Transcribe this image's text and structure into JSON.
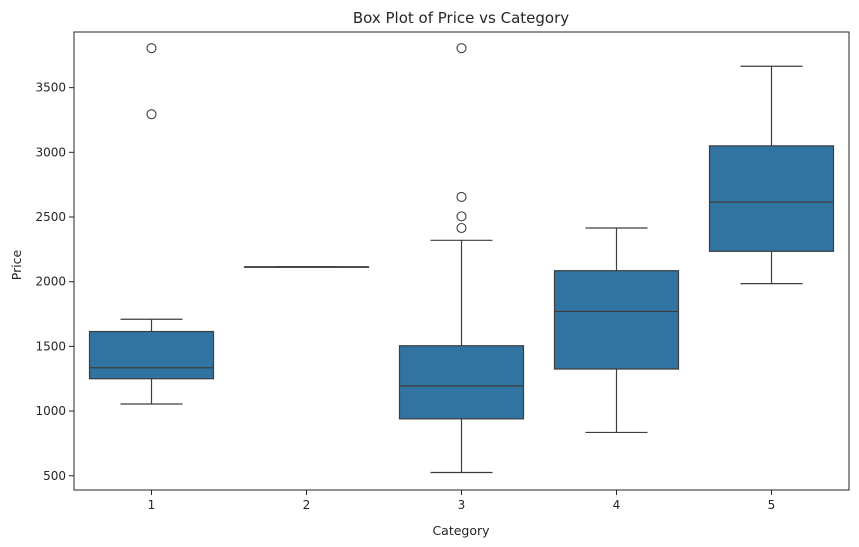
{
  "chart_data": {
    "type": "box",
    "title": "Box Plot of Price vs Category",
    "xlabel": "Category",
    "ylabel": "Price",
    "ylim": [
      390,
      3930
    ],
    "yticks": [
      500,
      1000,
      1500,
      2000,
      2500,
      3000,
      3500
    ],
    "categories": [
      "1",
      "2",
      "3",
      "4",
      "5"
    ],
    "box_color": "#3274a1",
    "line_color": "#3d3d3d",
    "boxes": [
      {
        "category": "1",
        "whisker_low": 1055,
        "q1": 1250,
        "median": 1335,
        "q3": 1615,
        "whisker_high": 1710,
        "outliers": [
          3295,
          3805
        ]
      },
      {
        "category": "2",
        "whisker_low": 2115,
        "q1": 2115,
        "median": 2115,
        "q3": 2115,
        "whisker_high": 2115,
        "outliers": []
      },
      {
        "category": "3",
        "whisker_low": 525,
        "q1": 940,
        "median": 1195,
        "q3": 1505,
        "whisker_high": 2320,
        "outliers": [
          2415,
          2505,
          2655,
          3805
        ]
      },
      {
        "category": "4",
        "whisker_low": 835,
        "q1": 1325,
        "median": 1770,
        "q3": 2085,
        "whisker_high": 2415,
        "outliers": []
      },
      {
        "category": "5",
        "whisker_low": 1985,
        "q1": 2235,
        "median": 2615,
        "q3": 3050,
        "whisker_high": 3665,
        "outliers": []
      }
    ]
  }
}
